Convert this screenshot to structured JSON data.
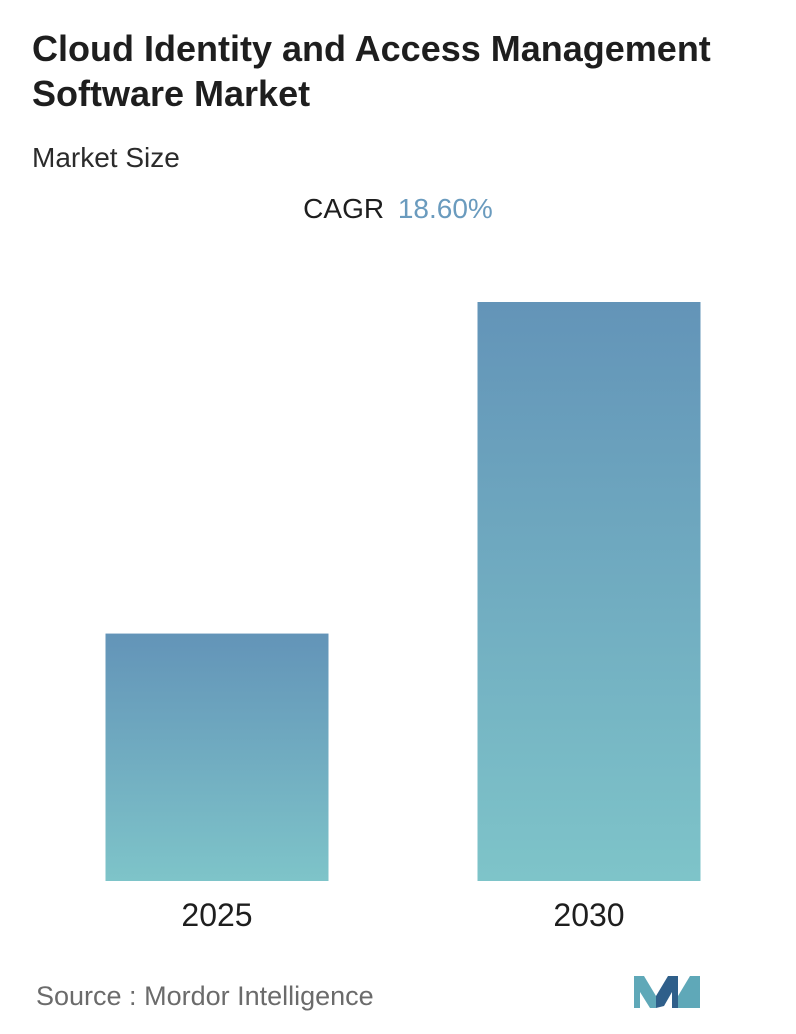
{
  "title": "Cloud Identity and Access Management Software Market",
  "subtitle": "Market Size",
  "cagr": {
    "label": "CAGR",
    "value": "18.60%"
  },
  "chart_data": {
    "type": "bar",
    "categories": [
      "2025",
      "2030"
    ],
    "values": [
      1.0,
      2.34
    ],
    "ylim": [
      0,
      2.34
    ],
    "grid": false,
    "colors": {
      "bar_top": "#6394b8",
      "bar_bottom": "#7ec4c9"
    }
  },
  "source": {
    "label": "Source :",
    "name": "Mordor Intelligence"
  },
  "logo": {
    "icon": "mordor-intelligence-logo-icon",
    "colors": [
      "#5fa8b8",
      "#2f5f8a"
    ]
  }
}
